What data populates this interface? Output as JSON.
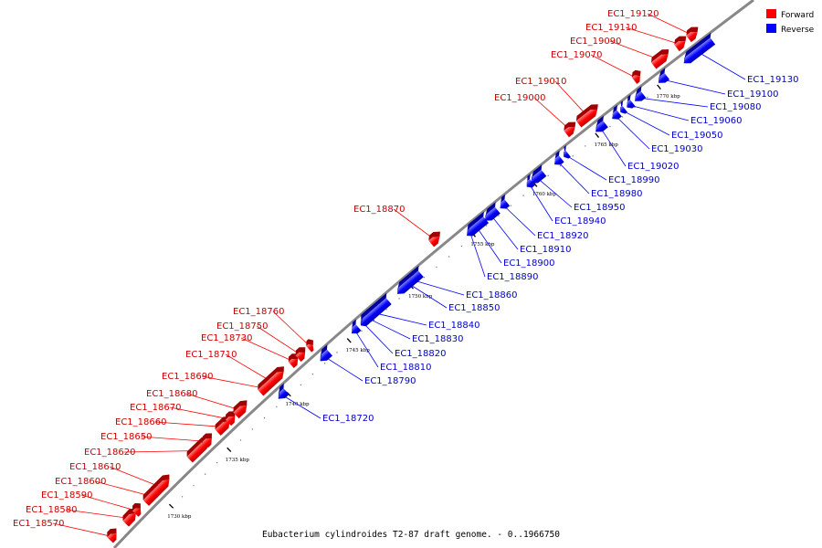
{
  "caption": "Eubacterium cylindroides T2-87 draft genome. - 0..1966750",
  "legend": [
    {
      "label": "Forward",
      "color": "#ff0000"
    },
    {
      "label": "Reverse",
      "color": "#0000ff"
    }
  ],
  "colors": {
    "forward": "#ff0000",
    "reverse": "#0000ff",
    "backbone": "#888888",
    "fwd_text": "#cc0000",
    "rev_text": "#0000cc"
  },
  "ticks": [
    "1730 kbp",
    "1735 kbp",
    "1740 kbp",
    "1745 kbp",
    "1750 kbp",
    "1755 kbp",
    "1760 kbp",
    "1765 kbp",
    "1770 kbp"
  ],
  "forward_genes": [
    "EC1_18570",
    "EC1_18580",
    "EC1_18590",
    "EC1_18600",
    "EC1_18610",
    "EC1_18620",
    "EC1_18650",
    "EC1_18660",
    "EC1_18670",
    "EC1_18680",
    "EC1_18690",
    "EC1_18710",
    "EC1_18730",
    "EC1_18750",
    "EC1_18760",
    "EC1_18870",
    "EC1_19000",
    "EC1_19010",
    "EC1_19070",
    "EC1_19090",
    "EC1_19110",
    "EC1_19120"
  ],
  "reverse_genes": [
    "EC1_18720",
    "EC1_18790",
    "EC1_18810",
    "EC1_18820",
    "EC1_18830",
    "EC1_18840",
    "EC1_18850",
    "EC1_18860",
    "EC1_18890",
    "EC1_18900",
    "EC1_18910",
    "EC1_18920",
    "EC1_18940",
    "EC1_18950",
    "EC1_18980",
    "EC1_18990",
    "EC1_19020",
    "EC1_19030",
    "EC1_19050",
    "EC1_19060",
    "EC1_19080",
    "EC1_19100",
    "EC1_19130"
  ]
}
